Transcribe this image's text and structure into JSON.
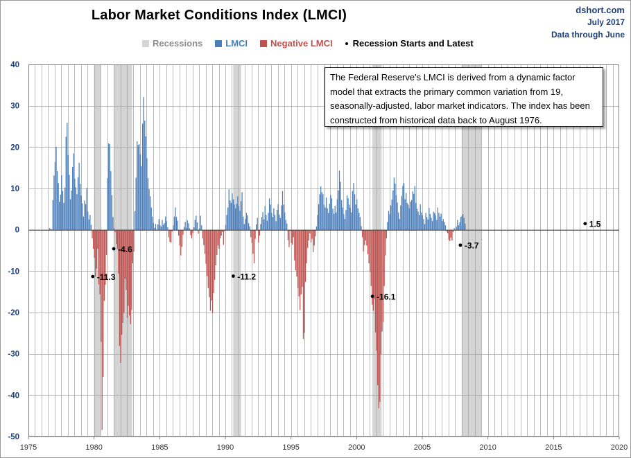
{
  "header": {
    "title": "Labor Market Conditions Index  (LMCI)",
    "credit_site": "dshort.com",
    "credit_date": "July 2017",
    "credit_through": "Data through June"
  },
  "legend": {
    "recessions": "Recessions",
    "lmci": "LMCI",
    "negative": "Negative LMCI",
    "markers": "Recession Starts and Latest"
  },
  "colors": {
    "positive": "#4a7ebb",
    "negative": "#c0504d",
    "recession": "#d4d4d4",
    "grid": "#a6a6a6",
    "marker": "#000000"
  },
  "note": {
    "text": "The Federal Reserve's LMCI is derived from a dynamic factor model that extracts the primary common variation from 19, seasonally-adjusted, labor market indicators. The index has been constructed from historical data back to August 1976."
  },
  "chart_data": {
    "type": "bar",
    "title": "Labor Market Conditions Index  (LMCI)",
    "xlabel": "",
    "ylabel": "",
    "xlim": [
      1975,
      2020
    ],
    "ylim": [
      -50,
      40
    ],
    "x_ticks": [
      1975,
      1980,
      1985,
      1990,
      1995,
      2000,
      2005,
      2010,
      2015,
      2020
    ],
    "y_ticks": [
      -50,
      -40,
      -30,
      -20,
      -10,
      0,
      10,
      20,
      30,
      40
    ],
    "x_tick_labels": [
      "1975",
      "1980",
      "1985",
      "1990",
      "1995",
      "2000",
      "2005",
      "2010",
      "2015",
      "2020"
    ],
    "y_tick_labels": [
      "-50",
      "-40",
      "-30",
      "-20",
      "-10",
      "0",
      "10",
      "20",
      "30",
      "40"
    ],
    "vertical_grid_step_years": 0.5,
    "horizontal_grid": true,
    "legend_position": "top",
    "recessions": [
      {
        "start": 1980.0,
        "end": 1980.5
      },
      {
        "start": 1981.5,
        "end": 1982.9
      },
      {
        "start": 1990.6,
        "end": 1991.2
      },
      {
        "start": 2001.2,
        "end": 2001.9
      },
      {
        "start": 2008.0,
        "end": 2009.5
      }
    ],
    "annotations": [
      {
        "x": 1979.9,
        "y": -11.3,
        "label": "-11.3"
      },
      {
        "x": 1981.5,
        "y": -4.6,
        "label": "-4.6"
      },
      {
        "x": 1990.6,
        "y": -11.2,
        "label": "-11.2"
      },
      {
        "x": 2001.2,
        "y": -16.1,
        "label": "-16.1"
      },
      {
        "x": 2007.9,
        "y": -3.7,
        "label": "-3.7"
      },
      {
        "x": 2017.4,
        "y": 1.5,
        "label": "1.5"
      }
    ],
    "series": [
      {
        "name": "LMCI",
        "start_year": 1976.58,
        "step_years": 0.0833,
        "values": [
          0.4,
          0.2,
          0.1,
          7.2,
          13.1,
          16.4,
          20.1,
          14.2,
          11.3,
          6.8,
          8.5,
          13.2,
          9.4,
          6.5,
          10.2,
          22.5,
          25.9,
          18.1,
          13.3,
          7.4,
          9.5,
          15.2,
          18.5,
          12.4,
          10.3,
          8.6,
          12.7,
          16.2,
          11.1,
          8.3,
          6.4,
          3.2,
          7.1,
          6.2,
          10.1,
          4.4,
          2.5,
          3.6,
          1.2,
          -2.1,
          -4.6,
          -6.8,
          -11.3,
          -9.4,
          -4.6,
          -13.2,
          -15.6,
          -27.1,
          -48.4,
          -35.6,
          -17.2,
          -13.3,
          -6.1,
          12.5,
          20.9,
          20.7,
          14.2,
          8.4,
          3.1,
          0.4,
          -0.6,
          -3.4,
          -4.6,
          -10.6,
          -28.1,
          -32.2,
          -25.4,
          -22.5,
          -20.1,
          -11.8,
          -14.6,
          -21.3,
          -18.4,
          -20.7,
          -22.8,
          -19.4,
          -8.1,
          -5.3,
          4.5,
          12.6,
          21.4,
          20.5,
          20.7,
          18.3,
          15.4,
          25.7,
          32.1,
          26.4,
          22.6,
          17.3,
          12.5,
          9.8,
          8.1,
          5.4,
          3.2,
          1.6,
          0.5,
          1.4,
          -0.2,
          1.3,
          2.6,
          1.1,
          0.8,
          2.4,
          1.2,
          1.6,
          3.2,
          2.1,
          0.6,
          -1.8,
          -2.9,
          -3.1,
          -0.4,
          1.1,
          3.2,
          5.4,
          3.1,
          2.2,
          -1.4,
          -3.8,
          -6.2,
          -4.1,
          -1.2,
          0.7,
          1.9,
          0.5,
          2.3,
          1.6,
          0.4,
          -1.3,
          -2.1,
          -0.8,
          0.6,
          2.4,
          3.4,
          1.8,
          -0.9,
          0.3,
          3.4,
          1.1,
          -2.1,
          -3.7,
          -5.8,
          -8.2,
          -11.2,
          -14.1,
          -16.3,
          -19.6,
          -17.1,
          -20.1,
          -15.3,
          -12.1,
          -8.6,
          -6.1,
          -3.8,
          -4.6,
          -2.1,
          -1.4,
          -0.5,
          -3.6,
          -0.3,
          1.2,
          3.6,
          5.4,
          9.8,
          7.1,
          6.5,
          8.8,
          7.4,
          6.1,
          5.2,
          6.3,
          8.1,
          5.8,
          4.6,
          6.9,
          9.1,
          3.2,
          1.4,
          2.6,
          4.1,
          3.5,
          1.6,
          0.8,
          -1.8,
          -3.2,
          -5.8,
          -8.1,
          -2.2,
          1.3,
          2.9,
          -3.1,
          -1.4,
          1.4,
          3.1,
          4.3,
          2.5,
          5.8,
          3.6,
          2.2,
          4.1,
          7.6,
          6.1,
          4.1,
          3.1,
          5.2,
          3.6,
          2.1,
          4.8,
          6.2,
          3.7,
          2.9,
          5.9,
          9.4,
          6.1,
          4.2,
          2.4,
          1.5,
          -2.5,
          -4.2,
          -0.3,
          -3.2,
          -3.6,
          -1.8,
          -7.4,
          -9.8,
          -11.3,
          -14.1,
          -16.1,
          -19.4,
          -15.6,
          -13.8,
          -26.4,
          -24.9,
          -12.6,
          -8.1,
          -4.4,
          -2.6,
          -0.9,
          -3.1,
          -2.2,
          -5.4,
          -3.8,
          -1.6,
          0.8,
          3.6,
          6.2,
          8.6,
          10.5,
          9.1,
          8.6,
          6.1,
          5.4,
          7.8,
          5.2,
          4.1,
          6.3,
          8.4,
          7.6,
          5.1,
          3.9,
          5.8,
          4.2,
          7.4,
          9.5,
          14.3,
          11.6,
          7.2,
          5.4,
          3.8,
          2.6,
          4.8,
          8.3,
          7.6,
          6.1,
          5.3,
          4.2,
          9.4,
          11.3,
          8.6,
          6.1,
          7.4,
          5.2,
          4.1,
          3.1,
          0.9,
          -1.8,
          -5.2,
          -3.7,
          -2.6,
          -3.8,
          -5.9,
          -8.1,
          -10.2,
          -13.6,
          -18.1,
          -19.6,
          -16.8,
          -24.8,
          -29.2,
          -37.6,
          -43.2,
          -41.6,
          -30.1,
          -24.6,
          -22.3,
          -13.6,
          -6.2,
          -2.1,
          1.9,
          4.6,
          3.8,
          5.9,
          7.3,
          9.5,
          12.6,
          11.2,
          8.4,
          6.6,
          4.2,
          2.6,
          5.9,
          8.2,
          10.6,
          11.3,
          7.4,
          8.9,
          6.5,
          6.1,
          5.2,
          6.8,
          7.2,
          9.3,
          8.7,
          10.6,
          6.5,
          5.1,
          4.4,
          3.6,
          6.2,
          4.2,
          3.5,
          2.6,
          1.4,
          4.1,
          3.1,
          2.5,
          5.3,
          3.8,
          2.9,
          2.1,
          4.4,
          4.1,
          3.5,
          2.4,
          5.4,
          4.1,
          3.2,
          3.9,
          2.1,
          2.6,
          1.9,
          1.1,
          -0.4,
          -0.8,
          -2.4,
          -2.7,
          -1.9,
          -2.6,
          -0.6,
          0.4,
          -0.2,
          0.8,
          2.4,
          1.1,
          1.8,
          3.1,
          3.4,
          3.8,
          2.9,
          1.5
        ]
      }
    ]
  }
}
